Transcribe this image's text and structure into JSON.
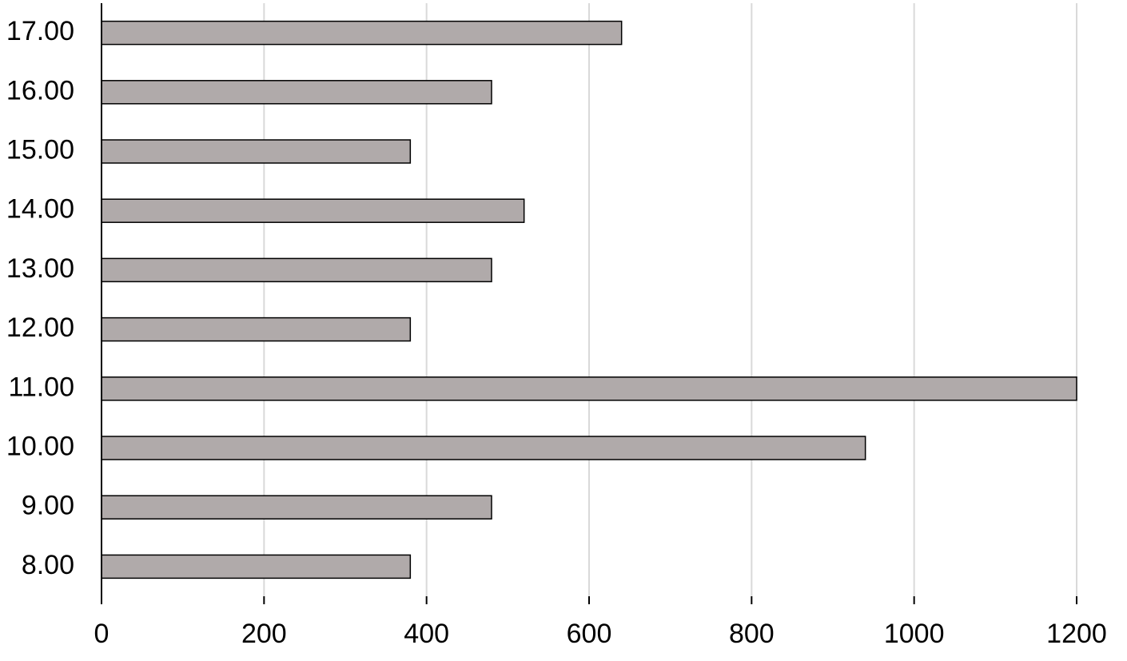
{
  "chart_data": {
    "type": "bar",
    "orientation": "horizontal",
    "categories": [
      "8.00",
      "9.00",
      "10.00",
      "11.00",
      "12.00",
      "13.00",
      "14.00",
      "15.00",
      "16.00",
      "17.00"
    ],
    "values": [
      380,
      480,
      940,
      1200,
      380,
      480,
      520,
      380,
      480,
      640
    ],
    "color": "#b0aaaa",
    "xlim": [
      0,
      1200
    ],
    "xticks": [
      0,
      200,
      400,
      600,
      800,
      1000,
      1200
    ],
    "grid": true
  }
}
